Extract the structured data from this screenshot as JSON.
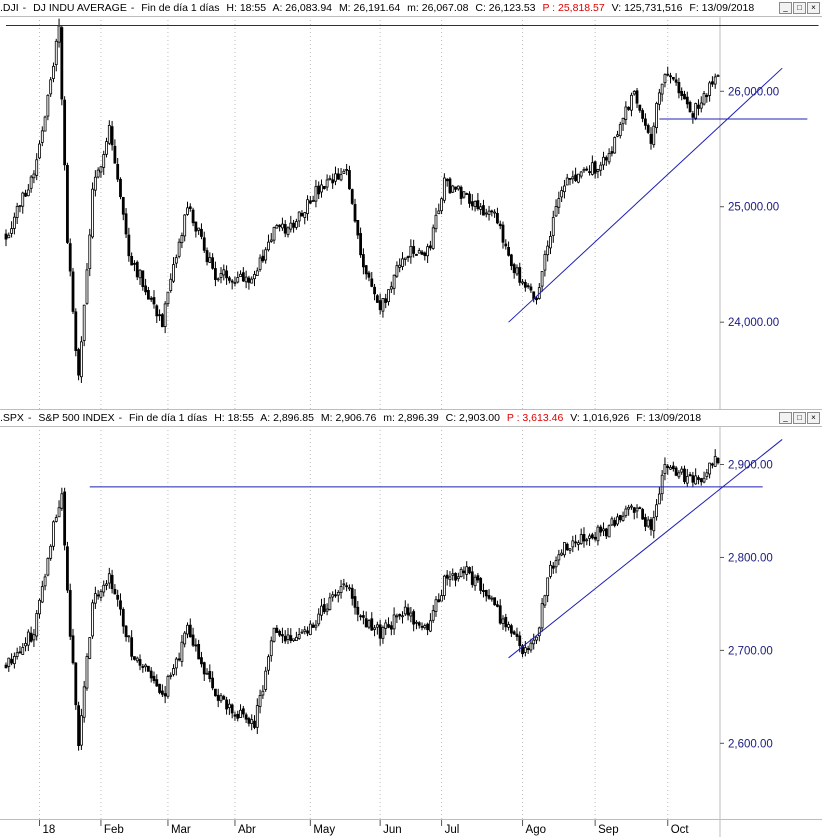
{
  "panels": [
    {
      "header": {
        "symbol": ".DJI",
        "name": "DJ INDU AVERAGE",
        "period": "Fin de día 1 días",
        "H": "H: 18:55",
        "A": "A: 26,083.94",
        "M": "M: 26,191.64",
        "m": "m: 26,067.08",
        "C": "C: 26,123.53",
        "P": "P : 25,818.57",
        "V": "V: 125,731,516",
        "F": "F: 13/09/2018"
      },
      "window_buttons": [
        "_",
        "□",
        "×"
      ]
    },
    {
      "header": {
        "symbol": ".SPX",
        "name": "S&P 500 INDEX",
        "period": "Fin de día 1 días",
        "H": "H: 18:55",
        "A": "A: 2,896.85",
        "M": "M: 2,906.76",
        "m": "m: 2,896.39",
        "C": "C: 2,903.00",
        "P": "P : 3,613.46",
        "V": "V: 1,016,926",
        "F": "F: 13/09/2018"
      },
      "window_buttons": [
        "_",
        "□",
        "×"
      ]
    }
  ],
  "colors": {
    "candle": "#000000",
    "trendline": "#1f1fb4",
    "grid": "#bdbdbd",
    "axis_label": "#1a1a80",
    "negative": "#e00000"
  },
  "chart_data": [
    {
      "type": "candlestick",
      "series_name": ".DJI",
      "y_ticks": [
        "26,000.00",
        "25,000.00",
        "24,000.00"
      ],
      "y_tick_values": [
        26000,
        25000,
        24000
      ],
      "ylim": [
        23300,
        26600
      ],
      "grid": "dotted vertical",
      "anchors": [
        [
          0,
          24750
        ],
        [
          10,
          25300
        ],
        [
          17,
          26200
        ],
        [
          19,
          26600
        ],
        [
          22,
          24700
        ],
        [
          26,
          23500
        ],
        [
          31,
          25100
        ],
        [
          37,
          25700
        ],
        [
          44,
          24600
        ],
        [
          56,
          24000
        ],
        [
          65,
          25000
        ],
        [
          75,
          24400
        ],
        [
          89,
          24400
        ],
        [
          96,
          24800
        ],
        [
          101,
          24800
        ],
        [
          110,
          25100
        ],
        [
          122,
          25300
        ],
        [
          128,
          24500
        ],
        [
          134,
          24100
        ],
        [
          143,
          24600
        ],
        [
          151,
          24600
        ],
        [
          157,
          25200
        ],
        [
          165,
          25100
        ],
        [
          175,
          24900
        ],
        [
          185,
          24300
        ],
        [
          190,
          24200
        ],
        [
          195,
          24800
        ],
        [
          200,
          25200
        ],
        [
          215,
          25400
        ],
        [
          225,
          26000
        ],
        [
          231,
          25600
        ],
        [
          236,
          26200
        ],
        [
          246,
          25800
        ],
        [
          254,
          26100
        ]
      ],
      "seed": 7,
      "trendlines": [
        {
          "from": [
            0,
            26570
          ],
          "to": [
            291,
            26570
          ]
        },
        {
          "from": [
            180,
            24000
          ],
          "to": [
            278,
            26200
          ]
        },
        {
          "from": [
            234,
            25760
          ],
          "to": [
            287,
            25760
          ]
        }
      ]
    },
    {
      "type": "candlestick",
      "series_name": ".SPX",
      "y_ticks": [
        "2,900.00",
        "2,800.00",
        "2,700.00",
        "2,600.00"
      ],
      "y_tick_values": [
        2900,
        2800,
        2700,
        2600
      ],
      "ylim": [
        2525,
        2935
      ],
      "grid": "dotted vertical",
      "anchors": [
        [
          0,
          2685
        ],
        [
          10,
          2720
        ],
        [
          17,
          2835
        ],
        [
          20,
          2872
        ],
        [
          22,
          2760
        ],
        [
          26,
          2600
        ],
        [
          31,
          2750
        ],
        [
          37,
          2780
        ],
        [
          45,
          2700
        ],
        [
          56,
          2650
        ],
        [
          65,
          2720
        ],
        [
          75,
          2650
        ],
        [
          89,
          2620
        ],
        [
          96,
          2720
        ],
        [
          101,
          2710
        ],
        [
          110,
          2730
        ],
        [
          122,
          2775
        ],
        [
          128,
          2730
        ],
        [
          134,
          2720
        ],
        [
          143,
          2740
        ],
        [
          151,
          2720
        ],
        [
          157,
          2775
        ],
        [
          165,
          2785
        ],
        [
          175,
          2745
        ],
        [
          185,
          2700
        ],
        [
          190,
          2715
        ],
        [
          195,
          2790
        ],
        [
          200,
          2810
        ],
        [
          215,
          2830
        ],
        [
          225,
          2855
        ],
        [
          231,
          2830
        ],
        [
          236,
          2900
        ],
        [
          246,
          2880
        ],
        [
          254,
          2902
        ]
      ],
      "seed": 11,
      "trendlines": [
        {
          "from": [
            30,
            2876
          ],
          "to": [
            271,
            2876
          ]
        },
        {
          "from": [
            180,
            2692
          ],
          "to": [
            278,
            2927
          ]
        }
      ]
    }
  ],
  "x_axis": {
    "labels": [
      {
        "text": "18",
        "idx": 12
      },
      {
        "text": "Feb",
        "idx": 34
      },
      {
        "text": "Mar",
        "idx": 58
      },
      {
        "text": "Abr",
        "idx": 82
      },
      {
        "text": "May",
        "idx": 109
      },
      {
        "text": "Jun",
        "idx": 134
      },
      {
        "text": "Jul",
        "idx": 156
      },
      {
        "text": "Ago",
        "idx": 185
      },
      {
        "text": "Sep",
        "idx": 211
      },
      {
        "text": "Oct",
        "idx": 237
      }
    ]
  }
}
